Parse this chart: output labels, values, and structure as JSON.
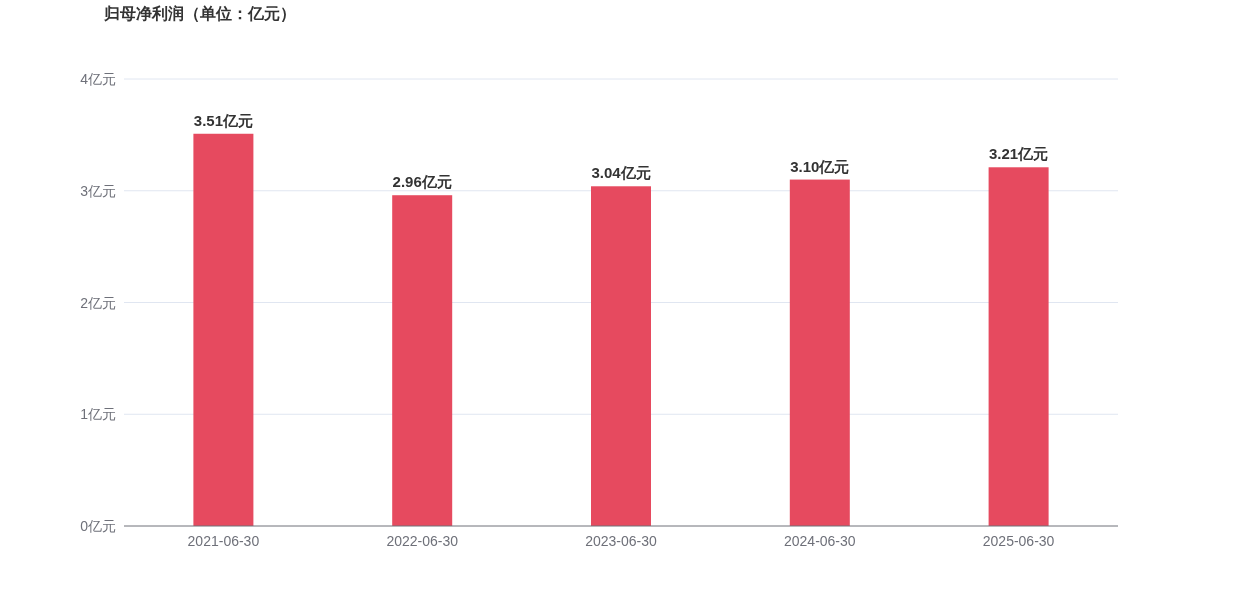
{
  "chart_data": {
    "type": "bar",
    "title": "归母净利润（单位：亿元）",
    "categories": [
      "2021-06-30",
      "2022-06-30",
      "2023-06-30",
      "2024-06-30",
      "2025-06-30"
    ],
    "values": [
      3.51,
      2.96,
      3.04,
      3.1,
      3.21
    ],
    "value_labels": [
      "3.51亿元",
      "2.96亿元",
      "3.04亿元",
      "3.10亿元",
      "3.21亿元"
    ],
    "color": "#e64a5f",
    "ylim": [
      0,
      4
    ],
    "yticks": [
      {
        "value": 0,
        "label": "0亿元"
      },
      {
        "value": 1,
        "label": "1亿元"
      },
      {
        "value": 2,
        "label": "2亿元"
      },
      {
        "value": 3,
        "label": "3亿元"
      },
      {
        "value": 4,
        "label": "4亿元"
      }
    ],
    "grid": "y"
  }
}
